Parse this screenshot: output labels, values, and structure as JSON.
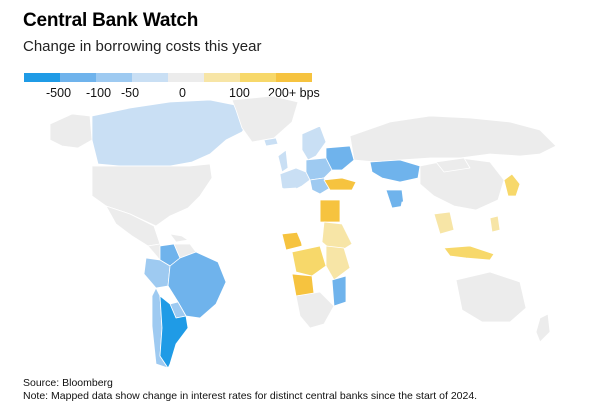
{
  "header": {
    "title": "Central Bank Watch",
    "subtitle": "Change in borrowing costs this year"
  },
  "legend": {
    "colors": [
      "#1f9be6",
      "#6fb3ec",
      "#9ecaf1",
      "#c9dff4",
      "#ececec",
      "#f7e5a6",
      "#f7d86a",
      "#f6c33f"
    ],
    "labels": [
      "-500",
      "-100",
      "-50",
      "0",
      "100",
      "200+ bps"
    ]
  },
  "map": {
    "palette": {
      "no_data": "#ececec",
      "neutral": "#ffffff",
      "cut_500": "#1f9be6",
      "cut_100": "#6fb3ec",
      "cut_50": "#9ecaf1",
      "cut_small": "#c9dff4",
      "hike_100": "#f7e5a6",
      "hike_200": "#f7d86a",
      "hike_max": "#f6c33f"
    }
  },
  "footer": {
    "source": "Source: Bloomberg",
    "note": "Note: Mapped data show change in interest rates for distinct central banks since the start of 2024."
  }
}
